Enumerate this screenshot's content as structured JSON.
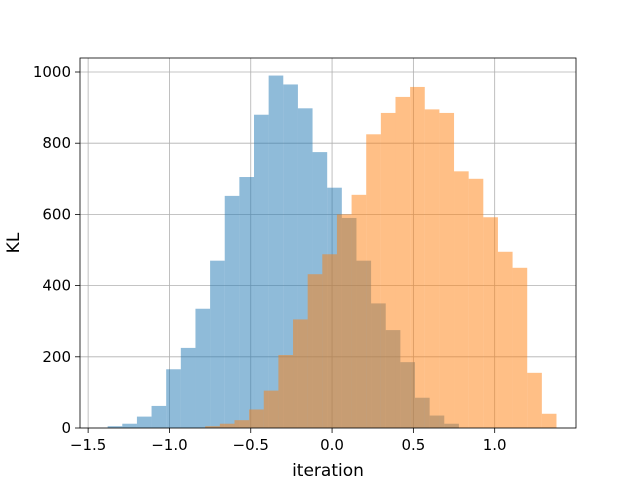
{
  "chart_data": {
    "type": "bar",
    "subtype": "overlapping-histogram",
    "title": "",
    "xlabel": "iteration",
    "ylabel": "KL",
    "xlim": [
      -1.55,
      1.5
    ],
    "ylim": [
      0,
      1000
    ],
    "xticks": [
      -1.5,
      -1.0,
      -0.5,
      0.0,
      0.5,
      1.0
    ],
    "xtick_labels": [
      "−1.5",
      "−1.0",
      "−0.5",
      "0.0",
      "0.5",
      "1.0"
    ],
    "yticks": [
      0,
      200,
      400,
      600,
      800,
      1000
    ],
    "ytick_labels": [
      "0",
      "200",
      "400",
      "600",
      "800",
      "1000"
    ],
    "grid": true,
    "legend": "none",
    "series": [
      {
        "color": "#1f77b4",
        "alpha": 0.5,
        "bin_edges": [
          -1.38,
          -1.29,
          -1.2,
          -1.11,
          -1.02,
          -0.93,
          -0.84,
          -0.75,
          -0.66,
          -0.57,
          -0.48,
          -0.39,
          -0.3,
          -0.21,
          -0.12,
          -0.03,
          0.06,
          0.15,
          0.24,
          0.33,
          0.42,
          0.51,
          0.6,
          0.69,
          0.78
        ],
        "counts": [
          5,
          12,
          32,
          62,
          165,
          225,
          335,
          470,
          652,
          705,
          880,
          990,
          965,
          898,
          775,
          675,
          590,
          470,
          350,
          275,
          185,
          85,
          35,
          12
        ]
      },
      {
        "color": "#ff7f0e",
        "alpha": 0.5,
        "bin_edges": [
          -0.78,
          -0.69,
          -0.6,
          -0.51,
          -0.42,
          -0.33,
          -0.24,
          -0.15,
          -0.06,
          0.03,
          0.12,
          0.21,
          0.3,
          0.39,
          0.48,
          0.57,
          0.66,
          0.75,
          0.84,
          0.93,
          1.02,
          1.11,
          1.2,
          1.29,
          1.38
        ],
        "counts": [
          5,
          12,
          22,
          52,
          105,
          205,
          305,
          432,
          488,
          600,
          655,
          825,
          885,
          930,
          958,
          895,
          885,
          721,
          700,
          592,
          495,
          450,
          155,
          40
        ]
      }
    ]
  }
}
